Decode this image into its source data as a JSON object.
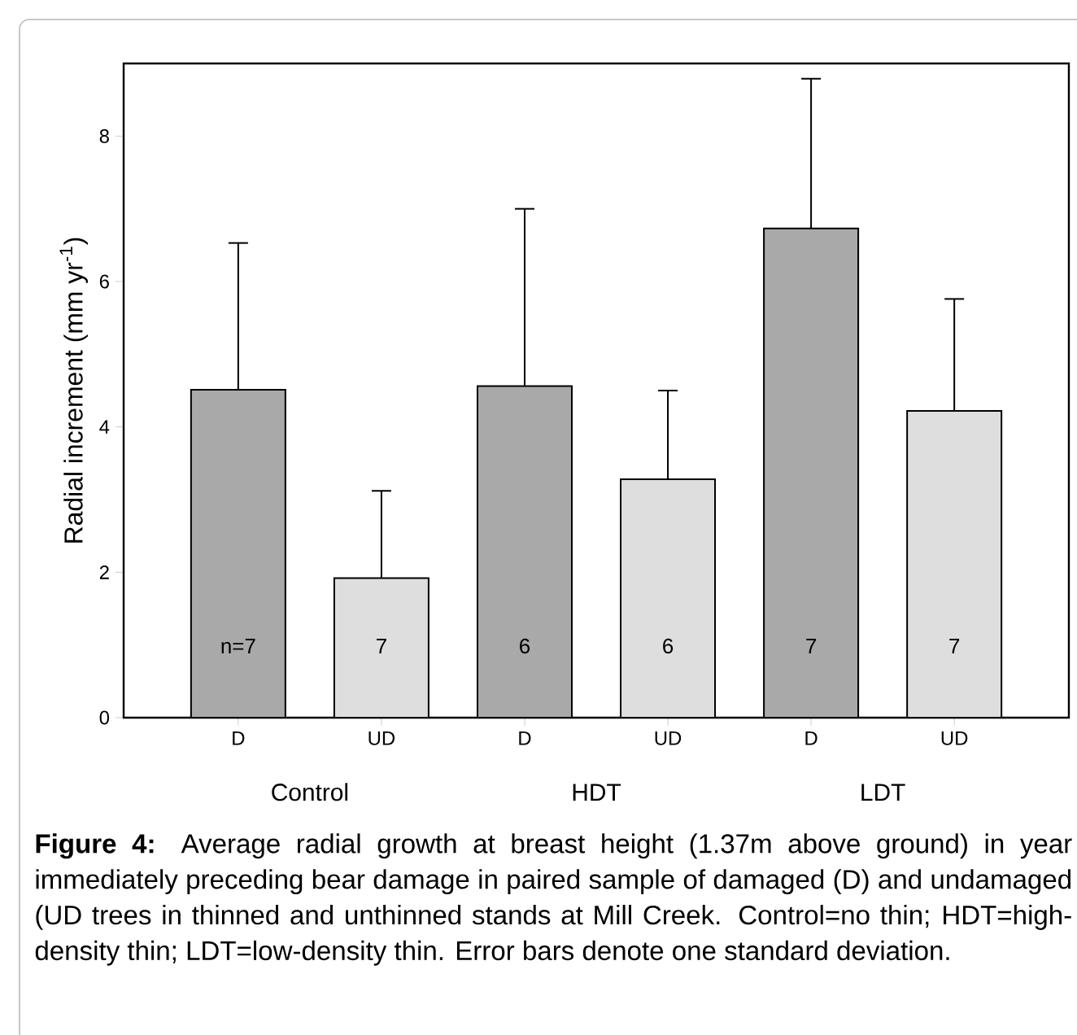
{
  "chart_data": {
    "type": "bar",
    "ylabel": "Radial increment (mm yr$^{-1}$)",
    "categories": [
      "D",
      "UD",
      "D",
      "UD",
      "D",
      "UD"
    ],
    "values": [
      4.51,
      1.92,
      4.56,
      3.28,
      6.73,
      4.22
    ],
    "colors": [
      "#a9a9a9",
      "#dedede",
      "#a9a9a9",
      "#dedede",
      "#a9a9a9",
      "#dedede"
    ],
    "errors": [
      [
        4.51,
        6.53
      ],
      [
        1.92,
        3.12
      ],
      [
        4.56,
        7.0
      ],
      [
        3.28,
        4.5
      ],
      [
        6.73,
        8.79
      ],
      [
        4.22,
        5.76
      ]
    ],
    "ylim": [
      0,
      9
    ],
    "yticks": [
      0,
      2,
      4,
      6,
      8
    ],
    "grid": false,
    "annotations": [
      "n=7",
      "7",
      "6",
      "6",
      "7",
      "7",
      "Control",
      "HDT",
      "LDT",
      "**Figure 4:** Average radial growth at breast height (1.37m above ground) in year immediately preceding bear damage in paired sample of damaged (D) and undamaged (UD trees in thinned and unthinned stands at Mill Creek. Control=no thin; HDT=high-density thin; LDT=low-density thin. Error bars denote one standard deviation."
    ]
  }
}
